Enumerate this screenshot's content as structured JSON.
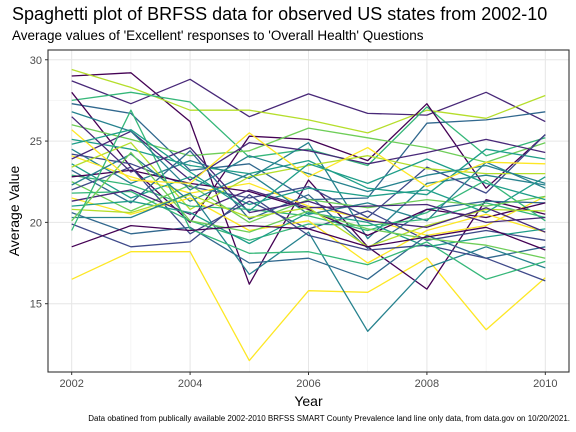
{
  "chart_data": {
    "type": "line",
    "title": "Spaghetti plot of BRFSS data for observed US states from 2002-10",
    "subtitle": "Average values of 'Excellent' responses to 'Overall Health' Questions",
    "caption": "Data obatined from publically available 2002-2010 BRFSS SMART County Prevalence land line only data, from data.gov on 10/20/2021.",
    "xlabel": "Year",
    "ylabel": "Average Value",
    "xlim": [
      2001.6,
      2010.4
    ],
    "ylim": [
      10.8,
      30.6
    ],
    "x_ticks": [
      2002,
      2004,
      2006,
      2008,
      2010
    ],
    "y_ticks": [
      15,
      20,
      25,
      30
    ],
    "grid": true,
    "legend": "none",
    "x": [
      2002,
      2003,
      2004,
      2005,
      2006,
      2007,
      2008,
      2009,
      2010
    ],
    "series": [
      {
        "color": "#fde725",
        "values": [
          16.5,
          18.2,
          18.2,
          11.5,
          15.8,
          15.7,
          17.8,
          13.4,
          16.6
        ]
      },
      {
        "color": "#440154",
        "values": [
          29.0,
          29.2,
          26.2,
          16.2,
          22.6,
          18.5,
          15.9,
          21.4,
          20.5
        ]
      },
      {
        "color": "#482878",
        "values": [
          28.7,
          27.3,
          28.8,
          26.5,
          27.9,
          26.7,
          26.6,
          28.0,
          26.2
        ]
      },
      {
        "color": "#b5de2b",
        "values": [
          29.4,
          28.3,
          26.9,
          26.9,
          26.3,
          25.5,
          26.9,
          26.4,
          27.8
        ]
      },
      {
        "color": "#35b779",
        "values": [
          27.5,
          28.0,
          27.4,
          24.0,
          24.5,
          23.5,
          27.1,
          24.1,
          25.2
        ]
      },
      {
        "color": "#31688e",
        "values": [
          27.3,
          26.7,
          23.2,
          23.6,
          21.4,
          21.5,
          26.1,
          26.3,
          26.8
        ]
      },
      {
        "color": "#440154",
        "values": [
          28.0,
          23.4,
          20.0,
          25.3,
          25.1,
          23.8,
          27.3,
          22.1,
          25.4
        ]
      },
      {
        "color": "#6ece58",
        "values": [
          26.0,
          25.1,
          24.1,
          24.4,
          25.8,
          25.2,
          24.6,
          23.7,
          24.9
        ]
      },
      {
        "color": "#1f9e89",
        "values": [
          25.1,
          24.5,
          23.5,
          23.0,
          23.8,
          22.1,
          21.7,
          24.5,
          23.9
        ]
      },
      {
        "color": "#26828e",
        "values": [
          24.5,
          22.4,
          23.8,
          22.7,
          24.9,
          19.0,
          22.4,
          22.9,
          22.3
        ]
      },
      {
        "color": "#3e4989",
        "values": [
          24.2,
          23.6,
          22.2,
          21.5,
          22.2,
          20.3,
          23.4,
          21.8,
          25.4
        ]
      },
      {
        "color": "#fde725",
        "values": [
          24.1,
          22.8,
          21.8,
          22.4,
          21.0,
          20.2,
          19.2,
          19.8,
          21.6
        ]
      },
      {
        "color": "#482878",
        "values": [
          23.9,
          25.6,
          22.6,
          24.9,
          24.4,
          23.6,
          24.3,
          25.1,
          24.3
        ]
      },
      {
        "color": "#1f9e89",
        "values": [
          23.6,
          21.5,
          22.8,
          21.1,
          22.1,
          21.6,
          22.0,
          20.6,
          22.8
        ]
      },
      {
        "color": "#b5de2b",
        "values": [
          23.4,
          24.9,
          20.8,
          22.8,
          23.5,
          24.1,
          23.3,
          23.0,
          23.0
        ]
      },
      {
        "color": "#31688e",
        "values": [
          23.2,
          21.2,
          24.4,
          20.2,
          21.7,
          18.4,
          20.8,
          21.3,
          21.2
        ]
      },
      {
        "color": "#35b779",
        "values": [
          22.9,
          22.3,
          21.0,
          20.8,
          20.4,
          19.5,
          20.6,
          22.6,
          20.1
        ]
      },
      {
        "color": "#440154",
        "values": [
          22.8,
          23.2,
          22.4,
          21.9,
          20.8,
          19.2,
          20.8,
          20.3,
          21.2
        ]
      },
      {
        "color": "#6ece58",
        "values": [
          22.5,
          20.7,
          22.3,
          20.0,
          21.4,
          20.9,
          21.4,
          21.0,
          21.6
        ]
      },
      {
        "color": "#26828e",
        "values": [
          22.3,
          24.2,
          21.3,
          23.0,
          20.5,
          21.2,
          20.1,
          23.7,
          22.1
        ]
      },
      {
        "color": "#3e4989",
        "values": [
          22.0,
          23.4,
          19.3,
          21.3,
          19.6,
          20.7,
          18.9,
          19.5,
          18.9
        ]
      },
      {
        "color": "#35b779",
        "values": [
          21.8,
          21.9,
          20.1,
          18.9,
          19.9,
          19.8,
          20.2,
          21.2,
          20.3
        ]
      },
      {
        "color": "#fde725",
        "values": [
          21.5,
          20.5,
          21.5,
          19.5,
          20.1,
          17.5,
          19.5,
          20.5,
          19.4
        ]
      },
      {
        "color": "#482878",
        "values": [
          21.3,
          22.0,
          20.5,
          22.0,
          20.9,
          21.0,
          21.1,
          20.0,
          20.3
        ]
      },
      {
        "color": "#1f9e89",
        "values": [
          21.0,
          21.3,
          20.6,
          18.7,
          20.6,
          20.0,
          18.5,
          19.1,
          19.6
        ]
      },
      {
        "color": "#b5de2b",
        "values": [
          20.8,
          20.6,
          21.7,
          20.3,
          20.9,
          18.5,
          19.8,
          20.8,
          20.7
        ]
      },
      {
        "color": "#31688e",
        "values": [
          20.6,
          19.3,
          19.7,
          17.5,
          17.8,
          16.5,
          19.2,
          17.8,
          18.5
        ]
      },
      {
        "color": "#26828e",
        "values": [
          20.3,
          20.3,
          21.8,
          16.8,
          19.4,
          13.3,
          17.2,
          18.5,
          17.2
        ]
      },
      {
        "color": "#6ece58",
        "values": [
          20.1,
          24.3,
          20.1,
          19.4,
          20.7,
          19.6,
          19.0,
          18.6,
          17.8
        ]
      },
      {
        "color": "#3e4989",
        "values": [
          19.9,
          18.5,
          18.8,
          21.7,
          19.2,
          18.3,
          18.6,
          17.8,
          16.4
        ]
      },
      {
        "color": "#35b779",
        "values": [
          19.5,
          26.9,
          19.6,
          18.1,
          18.2,
          17.4,
          18.8,
          16.5,
          17.6
        ]
      },
      {
        "color": "#440154",
        "values": [
          18.5,
          19.8,
          19.5,
          19.8,
          19.6,
          18.5,
          19.1,
          19.7,
          18.3
        ]
      },
      {
        "color": "#482878",
        "values": [
          26.5,
          23.1,
          24.6,
          20.6,
          21.3,
          20.1,
          19.7,
          20.9,
          19.4
        ]
      },
      {
        "color": "#26828e",
        "values": [
          26.8,
          25.6,
          22.0,
          24.1,
          23.0,
          21.9,
          22.9,
          23.5,
          22.4
        ]
      },
      {
        "color": "#fde725",
        "values": [
          25.7,
          22.6,
          22.4,
          25.5,
          22.8,
          24.6,
          22.2,
          23.7,
          23.6
        ]
      },
      {
        "color": "#1f9e89",
        "values": [
          24.8,
          25.7,
          23.1,
          20.7,
          23.6,
          22.4,
          23.9,
          22.4,
          21.4
        ]
      }
    ]
  }
}
